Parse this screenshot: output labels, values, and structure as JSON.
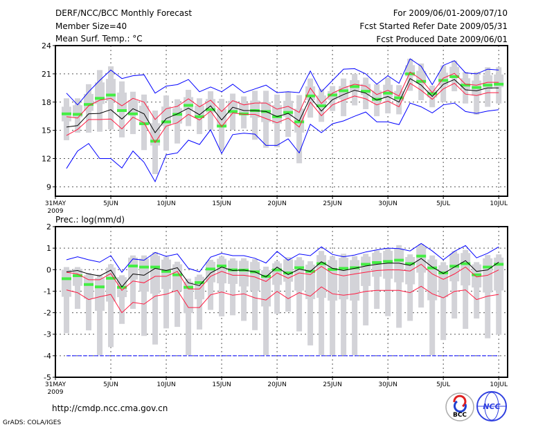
{
  "header": {
    "title": "DERF/NCC/BCC Monthly Forecast",
    "member_size": "Member Size=40",
    "period": "For 2009/06/01-2009/07/10",
    "started": "Fcst Started Refer Date 2009/05/31",
    "produced": "Fcst Produced Date 2009/06/01"
  },
  "footer": {
    "url": "http://cmdp.ncc.cma.gov.cn",
    "grads": "GrADS: COLA/IGES",
    "logo_bcc": "BCC",
    "logo_ncc": "NCC"
  },
  "colors": {
    "max_min": "#0000ff",
    "spread": "#ff1a40",
    "mean": "#000000",
    "obs": "#44ee44",
    "box": "#d3d3d8",
    "grid": "#555555"
  },
  "chart_data": [
    {
      "type": "line",
      "title": "Mean Surf. Temp.: °C",
      "xlabel": "",
      "ylabel": "",
      "x_days": [
        1,
        2,
        3,
        4,
        5,
        6,
        7,
        8,
        9,
        10,
        11,
        12,
        13,
        14,
        15,
        16,
        17,
        18,
        19,
        20,
        21,
        22,
        23,
        24,
        25,
        26,
        27,
        28,
        29,
        30,
        31,
        32,
        33,
        34,
        35,
        36,
        37,
        38,
        39,
        40
      ],
      "xlim": [
        0,
        40.8
      ],
      "xticks": [
        {
          "day": 0,
          "label": "31MAY",
          "sub": "2009"
        },
        {
          "day": 5,
          "label": "5JUN"
        },
        {
          "day": 10,
          "label": "10JUN"
        },
        {
          "day": 15,
          "label": "15JUN"
        },
        {
          "day": 20,
          "label": "20JUN"
        },
        {
          "day": 25,
          "label": "25JUN"
        },
        {
          "day": 30,
          "label": "30JUN"
        },
        {
          "day": 35,
          "label": "5JUL"
        },
        {
          "day": 40,
          "label": "10JUL"
        }
      ],
      "ylim": [
        8,
        24
      ],
      "yticks": [
        9,
        12,
        15,
        18,
        21,
        24
      ],
      "grid": true,
      "series": [
        {
          "name": "max",
          "color": "#0000ff",
          "values": [
            18.95,
            17.7,
            19.1,
            20.3,
            21.4,
            20.5,
            20.8,
            20.9,
            18.95,
            19.7,
            19.85,
            20.4,
            19.1,
            19.6,
            19.1,
            19.9,
            19.0,
            19.4,
            19.8,
            19.0,
            19.1,
            19.0,
            21.3,
            19.1,
            20.3,
            21.5,
            21.55,
            21.0,
            19.9,
            20.8,
            20.0,
            22.6,
            21.8,
            19.85,
            21.9,
            22.4,
            21.1,
            21.0,
            21.5,
            21.4
          ]
        },
        {
          "name": "min",
          "color": "#0000ff",
          "values": [
            10.95,
            12.8,
            13.6,
            12.0,
            12.0,
            11.0,
            12.8,
            11.6,
            9.55,
            12.4,
            12.6,
            13.95,
            13.5,
            15.05,
            12.55,
            14.55,
            14.7,
            14.6,
            13.4,
            13.4,
            14.1,
            12.6,
            15.65,
            14.75,
            15.7,
            16.0,
            16.5,
            16.95,
            15.9,
            15.9,
            15.6,
            17.9,
            17.5,
            16.85,
            17.7,
            17.9,
            17.0,
            16.8,
            17.05,
            17.2
          ]
        },
        {
          "name": "upper",
          "color": "#ff1a40",
          "values": [
            16.45,
            16.3,
            17.6,
            18.2,
            18.4,
            17.6,
            18.4,
            18.0,
            16.15,
            17.3,
            17.55,
            18.35,
            17.5,
            18.2,
            17.0,
            18.15,
            17.7,
            17.9,
            17.9,
            17.25,
            17.55,
            16.9,
            19.5,
            17.85,
            18.95,
            19.5,
            19.9,
            19.7,
            18.8,
            19.25,
            18.65,
            21.2,
            20.4,
            19.0,
            20.55,
            21.05,
            19.9,
            19.8,
            20.1,
            20.1
          ]
        },
        {
          "name": "lower",
          "color": "#ff1a40",
          "values": [
            14.45,
            15.1,
            16.15,
            16.15,
            16.2,
            15.15,
            16.4,
            15.8,
            13.7,
            15.45,
            15.8,
            16.7,
            16.1,
            17.05,
            15.4,
            16.85,
            16.7,
            16.7,
            16.25,
            15.8,
            16.3,
            15.35,
            18.0,
            16.55,
            17.7,
            18.2,
            18.65,
            18.35,
            17.7,
            18.1,
            17.5,
            20.0,
            19.25,
            18.3,
            19.4,
            20.0,
            18.85,
            18.7,
            19.0,
            19.0
          ]
        },
        {
          "name": "mean",
          "color": "#000000",
          "values": [
            15.35,
            15.5,
            16.75,
            16.8,
            17.2,
            16.2,
            17.3,
            16.75,
            14.75,
            16.25,
            16.75,
            17.35,
            16.65,
            17.6,
            16.1,
            17.45,
            17.1,
            17.1,
            17.0,
            16.45,
            16.8,
            16.0,
            18.5,
            17.05,
            18.25,
            18.8,
            19.25,
            18.95,
            18.2,
            18.6,
            18.0,
            20.5,
            19.8,
            18.6,
            19.9,
            20.4,
            19.3,
            19.2,
            19.5,
            19.5
          ]
        },
        {
          "name": "obs",
          "color": "#44ee44",
          "values": [
            16.75,
            16.7,
            17.75,
            18.4,
            18.75,
            17.1,
            16.75,
            15.7,
            13.85,
            15.9,
            16.7,
            17.65,
            16.45,
            17.2,
            15.45,
            17.0,
            16.75,
            17.1,
            17.0,
            16.45,
            16.9,
            15.9,
            18.65,
            17.6,
            18.75,
            19.2,
            19.65,
            19.15,
            18.3,
            18.95,
            18.45,
            21.0,
            20.2,
            18.9,
            20.3,
            20.7,
            19.8,
            19.55,
            19.8,
            19.9
          ]
        }
      ],
      "box_high": [
        18.4,
        18.4,
        19.9,
        21.4,
        21.8,
        20.2,
        19.1,
        18.8,
        17.1,
        18.7,
        18.3,
        19.3,
        18.4,
        19.15,
        18.35,
        18.9,
        18.6,
        19.2,
        19.2,
        18.8,
        19.1,
        18.75,
        20.5,
        19.4,
        19.7,
        20.5,
        21.0,
        20.6,
        19.9,
        20.6,
        19.8,
        22.6,
        22.1,
        19.75,
        21.9,
        22.4,
        21.2,
        21.2,
        21.7,
        21.7
      ],
      "box_low": [
        13.95,
        14.75,
        14.75,
        14.85,
        15.1,
        14.25,
        14.6,
        12.9,
        10.35,
        12.85,
        13.6,
        15.45,
        14.6,
        15.05,
        12.95,
        15.05,
        15.2,
        14.0,
        13.15,
        13.2,
        14.3,
        11.5,
        16.35,
        15.9,
        17.05,
        16.5,
        17.65,
        17.25,
        16.5,
        16.8,
        16.7,
        19.2,
        18.2,
        17.45,
        18.0,
        19.15,
        17.85,
        16.65,
        17.5,
        17.85
      ]
    },
    {
      "type": "line",
      "title": "Prec.: log(mm/d)",
      "xlabel": "",
      "ylabel": "",
      "x_days": [
        1,
        2,
        3,
        4,
        5,
        6,
        7,
        8,
        9,
        10,
        11,
        12,
        13,
        14,
        15,
        16,
        17,
        18,
        19,
        20,
        21,
        22,
        23,
        24,
        25,
        26,
        27,
        28,
        29,
        30,
        31,
        32,
        33,
        34,
        35,
        36,
        37,
        38,
        39,
        40
      ],
      "xlim": [
        0,
        40.8
      ],
      "xticks": [
        {
          "day": 0,
          "label": "31MAY",
          "sub": "2009"
        },
        {
          "day": 5,
          "label": "5JUN"
        },
        {
          "day": 10,
          "label": "10JUN"
        },
        {
          "day": 15,
          "label": "15JUN"
        },
        {
          "day": 20,
          "label": "20JUN"
        },
        {
          "day": 25,
          "label": "25JUN"
        },
        {
          "day": 30,
          "label": "30JUN"
        },
        {
          "day": 35,
          "label": "5JUL"
        },
        {
          "day": 40,
          "label": "10JUL"
        }
      ],
      "ylim": [
        -5,
        2
      ],
      "yticks": [
        -5,
        -4,
        -3,
        -2,
        -1,
        0,
        1,
        2
      ],
      "grid": true,
      "reference_line": {
        "value": -4,
        "color": "#0000ff"
      },
      "series": [
        {
          "name": "max",
          "color": "#0000ff",
          "values": [
            0.46,
            0.6,
            0.46,
            0.35,
            0.65,
            -0.12,
            0.5,
            0.44,
            0.8,
            0.62,
            0.73,
            0.06,
            -0.1,
            0.58,
            0.76,
            0.65,
            0.65,
            0.53,
            0.31,
            0.85,
            0.44,
            0.73,
            0.65,
            1.06,
            0.71,
            0.6,
            0.68,
            0.82,
            0.92,
            1.0,
            0.98,
            0.87,
            1.22,
            0.87,
            0.46,
            0.85,
            1.12,
            0.55,
            0.76,
            1.06
          ]
        },
        {
          "name": "upper",
          "color": "#ff1a40",
          "values": [
            -0.12,
            -0.2,
            -0.47,
            -0.47,
            -0.18,
            -0.96,
            -0.53,
            -0.61,
            -0.31,
            -0.31,
            -0.08,
            -0.9,
            -0.9,
            -0.31,
            -0.08,
            -0.26,
            -0.26,
            -0.34,
            -0.55,
            -0.15,
            -0.4,
            -0.15,
            -0.23,
            0.15,
            -0.18,
            -0.29,
            -0.2,
            -0.12,
            -0.04,
            -0.01,
            -0.01,
            -0.06,
            0.25,
            -0.2,
            -0.45,
            -0.2,
            0.12,
            -0.34,
            -0.26,
            -0.01
          ]
        },
        {
          "name": "lower",
          "color": "#ff1a40",
          "values": [
            -0.94,
            -1.07,
            -1.39,
            -1.26,
            -1.15,
            -2.0,
            -1.52,
            -1.6,
            -1.23,
            -1.14,
            -0.96,
            -1.76,
            -1.76,
            -1.17,
            -1.04,
            -1.19,
            -1.12,
            -1.31,
            -1.41,
            -1.01,
            -1.35,
            -1.07,
            -1.23,
            -0.8,
            -1.12,
            -1.19,
            -1.12,
            -1.01,
            -0.96,
            -0.96,
            -0.96,
            -1.07,
            -0.77,
            -1.12,
            -1.31,
            -1.01,
            -0.94,
            -1.39,
            -1.23,
            -1.15
          ]
        },
        {
          "name": "mean",
          "color": "#000000",
          "values": [
            -0.1,
            -0.04,
            -0.2,
            -0.29,
            -0.02,
            -0.8,
            -0.2,
            -0.26,
            0.06,
            -0.04,
            0.09,
            -0.61,
            -0.74,
            -0.15,
            0.12,
            -0.04,
            -0.02,
            -0.1,
            -0.34,
            0.12,
            -0.23,
            0.03,
            -0.08,
            0.37,
            0.06,
            -0.04,
            0.06,
            0.17,
            0.25,
            0.3,
            0.3,
            0.2,
            0.52,
            0.12,
            -0.18,
            0.12,
            0.42,
            -0.08,
            -0.01,
            0.35
          ]
        },
        {
          "name": "obs",
          "color": "#44ee44",
          "values": [
            -0.42,
            -0.28,
            -0.69,
            -0.8,
            -0.4,
            -0.82,
            0.17,
            0.12,
            0.12,
            -0.08,
            -0.24,
            -0.82,
            -0.6,
            0.03,
            0.17,
            -0.01,
            -0.02,
            -0.1,
            -0.31,
            -0.01,
            -0.15,
            0.09,
            -0.08,
            0.28,
            0.01,
            0.06,
            0.09,
            0.25,
            0.33,
            0.38,
            0.44,
            0.28,
            0.63,
            0.08,
            -0.15,
            0.16,
            0.28,
            -0.24,
            0.12,
            0.25
          ]
        }
      ],
      "box_high": [
        0.12,
        0.12,
        -0.15,
        -0.23,
        0.25,
        -0.26,
        0.66,
        0.66,
        0.82,
        0.6,
        0.37,
        -0.42,
        -0.23,
        0.46,
        0.62,
        0.53,
        0.53,
        0.49,
        0.14,
        0.39,
        0.58,
        0.58,
        0.39,
        0.87,
        0.63,
        0.74,
        0.63,
        0.74,
        0.89,
        1.0,
        1.14,
        0.71,
        1.19,
        0.66,
        0.35,
        0.87,
        0.92,
        0.35,
        0.68,
        0.71
      ],
      "box_low": [
        -2.95,
        -1.82,
        -2.82,
        -3.97,
        -3.6,
        -2.52,
        -1.82,
        -3.08,
        -3.48,
        -2.73,
        -2.66,
        -3.97,
        -2.78,
        -1.87,
        -2.17,
        -2.12,
        -2.38,
        -2.81,
        -3.97,
        -2.05,
        -1.95,
        -2.87,
        -3.52,
        -3.97,
        -3.97,
        -3.97,
        -3.97,
        -2.59,
        -1.82,
        -2.16,
        -2.7,
        -2.38,
        -1.76,
        -3.97,
        -3.27,
        -2.27,
        -2.75,
        -2.27,
        -3.19,
        -3.02
      ]
    }
  ]
}
